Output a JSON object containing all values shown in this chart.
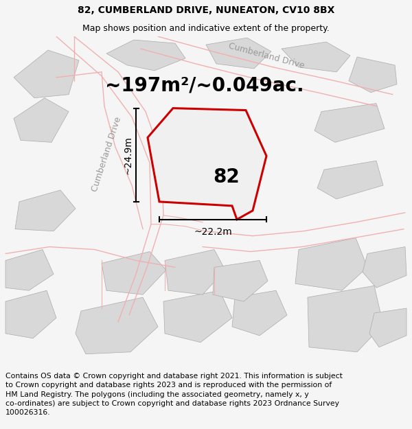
{
  "title": "82, CUMBERLAND DRIVE, NUNEATON, CV10 8BX",
  "subtitle": "Map shows position and indicative extent of the property.",
  "area_text": "~197m²/~0.049ac.",
  "label_82": "82",
  "dim_vertical": "~24.9m",
  "dim_horizontal": "~22.2m",
  "road_label_left": "Cumberland Drive",
  "road_label_top": "Cumberland Drive",
  "footer": "Contains OS data © Crown copyright and database right 2021. This information is subject\nto Crown copyright and database rights 2023 and is reproduced with the permission of\nHM Land Registry. The polygons (including the associated geometry, namely x, y\nco-ordinates) are subject to Crown copyright and database rights 2023 Ordnance Survey\n100026316.",
  "bg_color": "#f5f5f5",
  "map_bg": "#ffffff",
  "plot_color_edge": "#cc0000",
  "road_color": "#f0b0b0",
  "building_color": "#d8d8d8",
  "title_fontsize": 10,
  "subtitle_fontsize": 9,
  "area_fontsize": 20,
  "label_fontsize": 20,
  "dim_fontsize": 10,
  "road_label_fontsize": 9,
  "footer_fontsize": 7.8
}
